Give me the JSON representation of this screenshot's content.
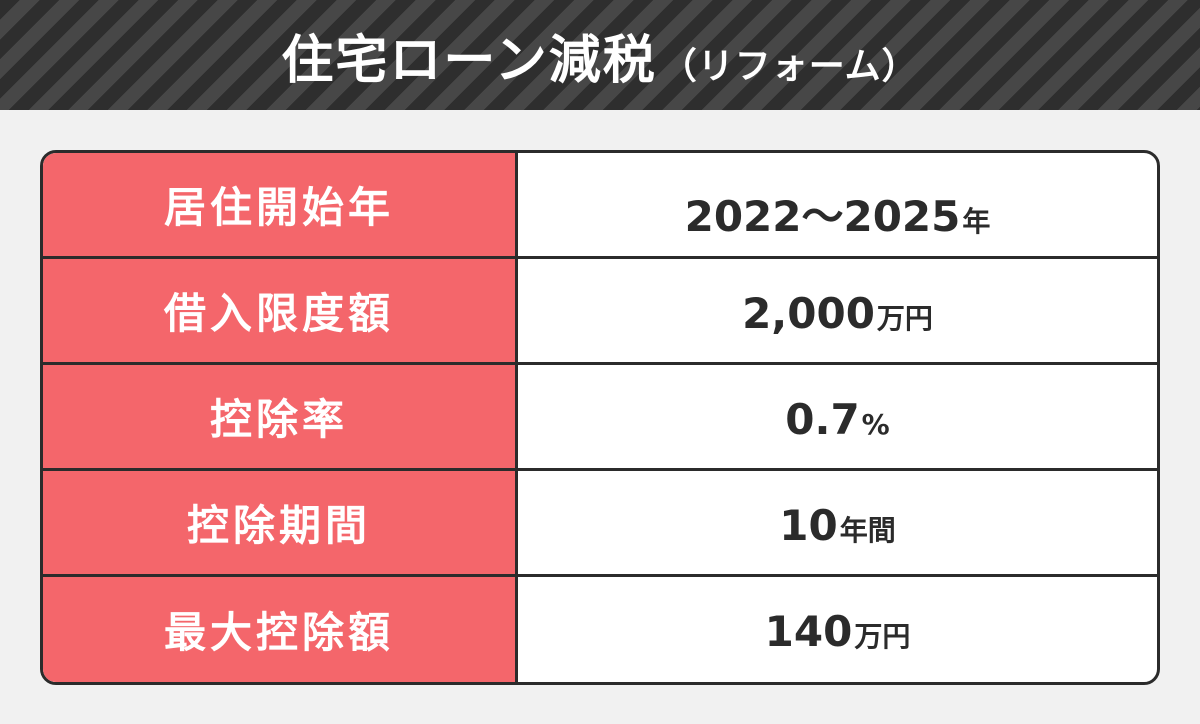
{
  "header": {
    "title": "住宅ローン減税",
    "subtitle": "（リフォーム）"
  },
  "rows": [
    {
      "label": "居住開始年",
      "value": "2022～2025",
      "unit": "年"
    },
    {
      "label": "借入限度額",
      "value": "2,000",
      "unit": "万円"
    },
    {
      "label": "控除率",
      "value": "0.7",
      "unit": "%"
    },
    {
      "label": "控除期間",
      "value": "10",
      "unit": "年間"
    },
    {
      "label": "最大控除額",
      "value": "140",
      "unit": "万円"
    }
  ],
  "colors": {
    "label_bg": "#f4666b",
    "border": "#2b2b2b",
    "banner_dark": "#2e2e2e",
    "banner_light": "#474747",
    "page_bg": "#f1f1f1"
  }
}
